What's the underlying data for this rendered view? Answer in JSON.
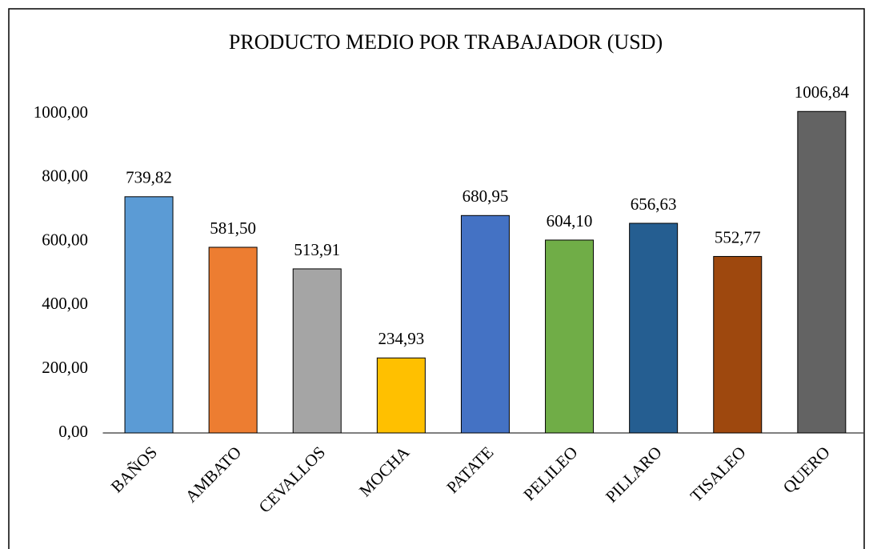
{
  "chart_data": {
    "type": "bar",
    "title": "PRODUCTO MEDIO POR TRABAJADOR (USD)",
    "categories": [
      "BAÑOS",
      "AMBATO",
      "CEVALLOS",
      "MOCHA",
      "PATATE",
      "PELILEO",
      "PILLARO",
      "TISALEO",
      "QUERO"
    ],
    "values": [
      739.82,
      581.5,
      513.91,
      234.93,
      680.95,
      604.1,
      656.63,
      552.77,
      1006.84
    ],
    "value_labels": [
      "739,82",
      "581,50",
      "513,91",
      "234,93",
      "680,95",
      "604,10",
      "656,63",
      "552,77",
      "1006,84"
    ],
    "colors": [
      "#5b9bd5",
      "#ed7d31",
      "#a5a5a5",
      "#ffc000",
      "#4472c4",
      "#70ad47",
      "#255e91",
      "#9e480e",
      "#636363"
    ],
    "ylim": [
      0,
      1000
    ],
    "yticks": [
      {
        "value": 0,
        "label": "0,00"
      },
      {
        "value": 200,
        "label": "200,00"
      },
      {
        "value": 400,
        "label": "400,00"
      },
      {
        "value": 600,
        "label": "600,00"
      },
      {
        "value": 800,
        "label": "800,00"
      },
      {
        "value": 1000,
        "label": "1000,00"
      }
    ],
    "grid": false
  }
}
